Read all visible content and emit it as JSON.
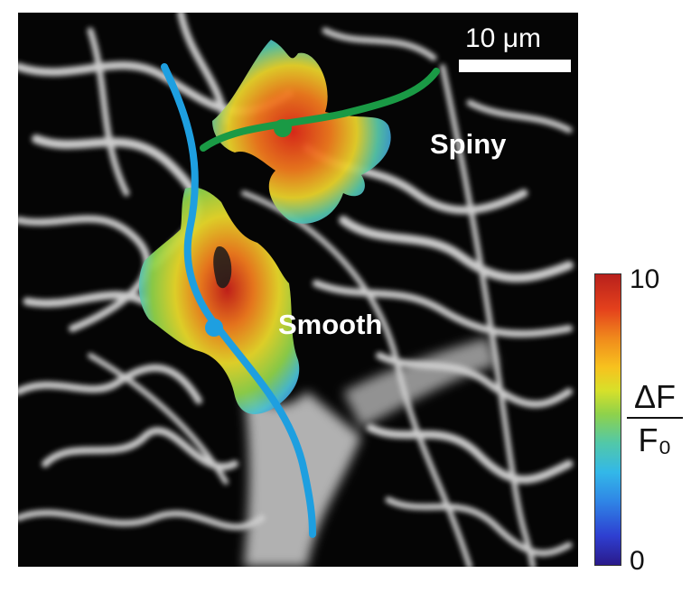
{
  "scale_bar": {
    "label": "10 μm"
  },
  "regions": {
    "spiny_label": "Spiny",
    "smooth_label": "Smooth"
  },
  "colorbar": {
    "max_label": "10",
    "min_label": "0",
    "quantity_numerator": "ΔF",
    "quantity_denominator": "F₀"
  },
  "colors": {
    "background": "#000000",
    "dendrite_trace_blue": "#1e9fe0",
    "dendrite_trace_green": "#1a9a45"
  }
}
